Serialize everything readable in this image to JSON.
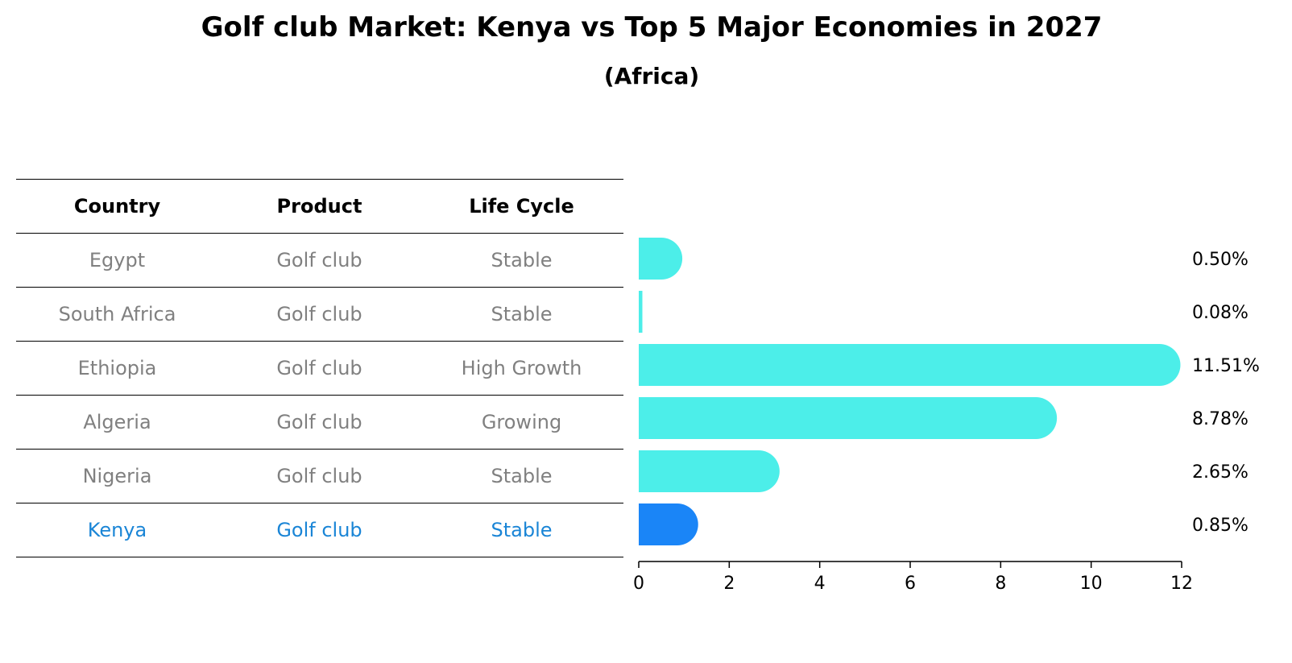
{
  "title": "Golf club Market: Kenya vs Top 5 Major Economies in 2027",
  "subtitle": "(Africa)",
  "table": {
    "headers": [
      "Country",
      "Product",
      "Life Cycle"
    ],
    "rows": [
      [
        "Egypt",
        "Golf club",
        "Stable"
      ],
      [
        "South Africa",
        "Golf club",
        "Stable"
      ],
      [
        "Ethiopia",
        "Golf club",
        "High Growth"
      ],
      [
        "Algeria",
        "Golf club",
        "Growing"
      ],
      [
        "Nigeria",
        "Golf club",
        "Stable"
      ],
      [
        "Kenya",
        "Golf club",
        "Stable"
      ]
    ],
    "highlight_row": 5,
    "highlight_color": "#1a85d6"
  },
  "chart_data": {
    "type": "bar",
    "orientation": "horizontal",
    "categories": [
      "Egypt",
      "South Africa",
      "Ethiopia",
      "Algeria",
      "Nigeria",
      "Kenya"
    ],
    "values": [
      0.5,
      0.08,
      11.51,
      8.78,
      2.65,
      0.85
    ],
    "value_labels": [
      "0.50%",
      "0.08%",
      "11.51%",
      "8.78%",
      "2.65%",
      "0.85%"
    ],
    "xlim": [
      0,
      12
    ],
    "xticks": [
      0,
      2,
      4,
      6,
      8,
      10,
      12
    ],
    "bar_color": "#4ceee9",
    "highlight_color": "#1a85f7",
    "highlight_index": 5,
    "grid": false
  }
}
